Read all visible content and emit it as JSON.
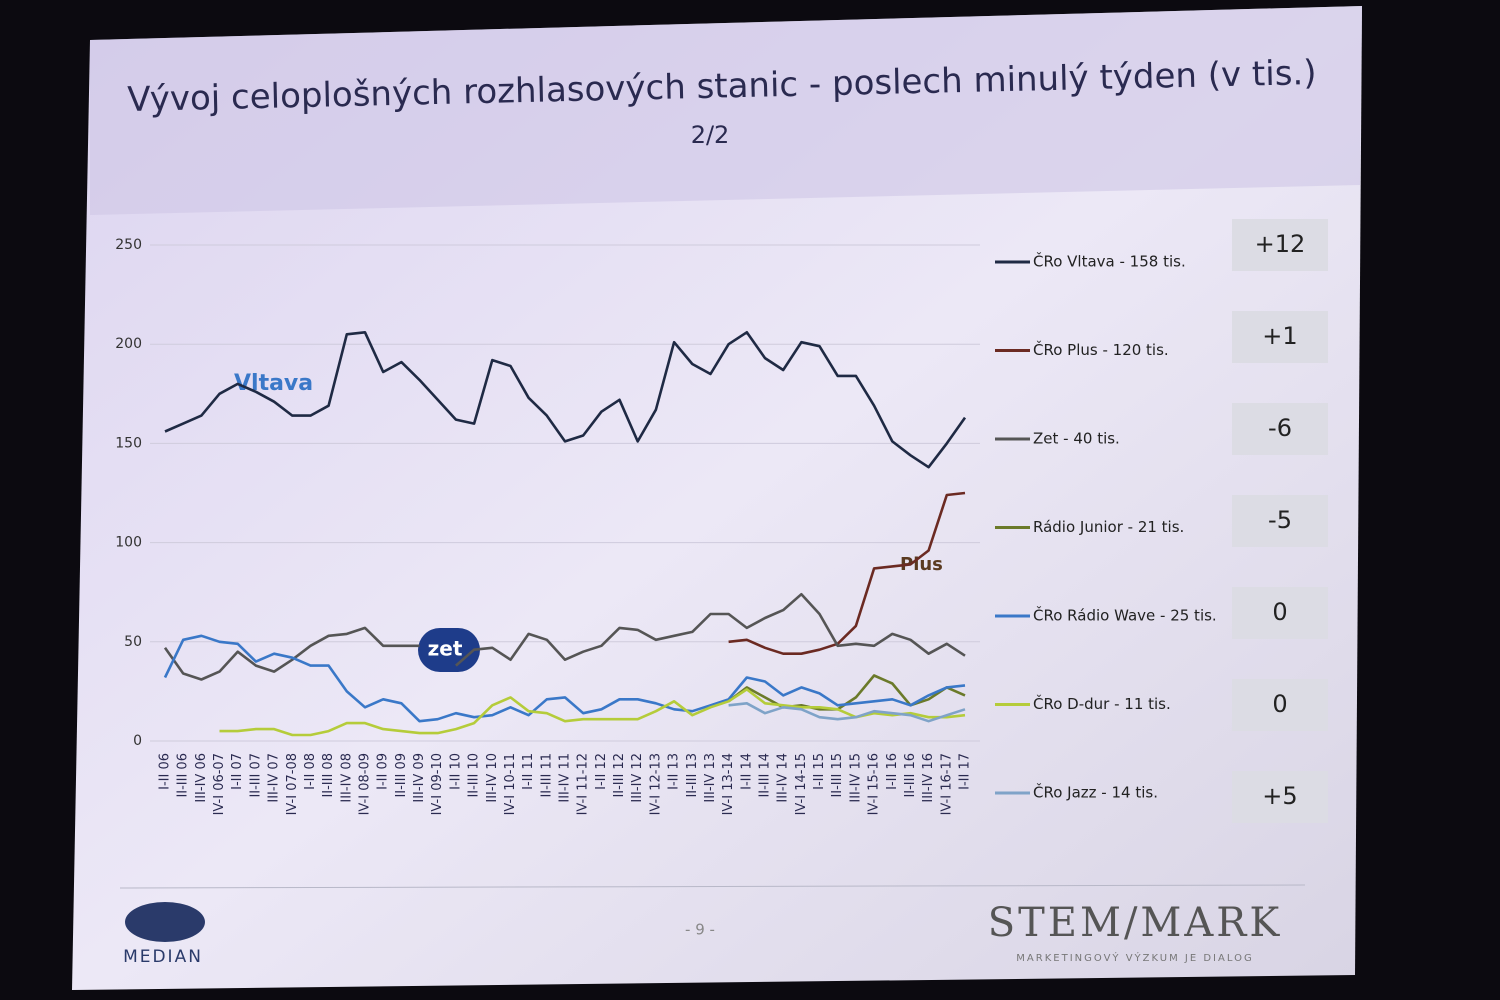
{
  "chart_data": {
    "type": "line",
    "title": "Vývoj celoplošných rozhlasových stanic - poslech minulý týden (v tis.)",
    "subtitle": "2/2",
    "categories": [
      "I-II 06",
      "II-III 06",
      "III-IV 06",
      "IV-I 06-07",
      "I-II 07",
      "II-III 07",
      "III-IV 07",
      "IV-I 07-08",
      "I-II 08",
      "II-III 08",
      "III-IV 08",
      "IV-I 08-09",
      "I-II 09",
      "II-III 09",
      "III-IV 09",
      "IV-I 09-10",
      "I-II 10",
      "II-III 10",
      "III-IV 10",
      "IV-I 10-11",
      "I-II 11",
      "II-III 11",
      "III-IV 11",
      "IV-I 11-12",
      "I-II 12",
      "II-III 12",
      "III-IV 12",
      "IV-I 12-13",
      "I-II 13",
      "II-III 13",
      "III-IV 13",
      "IV-I 13-14",
      "I-II 14",
      "II-III 14",
      "III-IV 14",
      "IV-I 14-15",
      "I-II 15",
      "II-III 15",
      "III-IV 15",
      "IV-I 15-16",
      "I-II 16",
      "II-III 16",
      "III-IV 16",
      "IV-I 16-17",
      "I-II 17"
    ],
    "series": [
      {
        "name": "ČRo Vltava - 158 tis.",
        "color": "#1f2a44",
        "values": [
          156,
          160,
          164,
          175,
          180,
          176,
          171,
          164,
          164,
          169,
          205,
          206,
          186,
          191,
          182,
          172,
          162,
          160,
          192,
          189,
          173,
          164,
          151,
          154,
          166,
          172,
          151,
          167,
          201,
          190,
          185,
          200,
          206,
          193,
          187,
          201,
          199,
          184,
          184,
          169,
          151,
          144,
          138,
          150,
          163
        ]
      },
      {
        "name": "ČRo Plus - 120 tis.",
        "color": "#6b2a22",
        "values": [
          null,
          null,
          null,
          null,
          null,
          null,
          null,
          null,
          null,
          null,
          null,
          null,
          null,
          null,
          null,
          null,
          null,
          null,
          null,
          null,
          null,
          null,
          null,
          null,
          null,
          null,
          null,
          null,
          null,
          null,
          null,
          50,
          51,
          47,
          44,
          44,
          46,
          49,
          58,
          87,
          88,
          89,
          96,
          124,
          125
        ]
      },
      {
        "name": "Zet - 40 tis.",
        "color": "#555555",
        "values": [
          47,
          34,
          31,
          35,
          45,
          38,
          35,
          41,
          48,
          53,
          54,
          57,
          48,
          48,
          48,
          null,
          38,
          46,
          47,
          41,
          54,
          51,
          41,
          45,
          48,
          57,
          56,
          51,
          53,
          55,
          64,
          64,
          57,
          62,
          66,
          74,
          64,
          48,
          49,
          48,
          54,
          51,
          44,
          49,
          43
        ]
      },
      {
        "name": "Rádio Junior - 21 tis.",
        "color": "#6b7a2a",
        "values": [
          null,
          null,
          null,
          null,
          null,
          null,
          null,
          null,
          null,
          null,
          null,
          null,
          null,
          null,
          null,
          null,
          null,
          null,
          null,
          null,
          null,
          null,
          null,
          null,
          null,
          null,
          null,
          null,
          null,
          null,
          null,
          20,
          27,
          22,
          17,
          18,
          16,
          16,
          22,
          33,
          29,
          18,
          21,
          27,
          23
        ]
      },
      {
        "name": "ČRo Rádio Wave - 25 tis.",
        "color": "#3a78c8",
        "values": [
          32,
          51,
          53,
          50,
          49,
          40,
          44,
          42,
          38,
          38,
          25,
          17,
          21,
          19,
          10,
          11,
          14,
          12,
          13,
          17,
          13,
          21,
          22,
          14,
          16,
          21,
          21,
          19,
          16,
          15,
          18,
          21,
          32,
          30,
          23,
          27,
          24,
          18,
          19,
          20,
          21,
          18,
          23,
          27,
          28
        ]
      },
      {
        "name": "ČRo D-dur - 11 tis.",
        "color": "#b5cc3a",
        "values": [
          null,
          null,
          null,
          5,
          5,
          6,
          6,
          3,
          3,
          5,
          9,
          9,
          6,
          5,
          4,
          4,
          6,
          9,
          18,
          22,
          15,
          14,
          10,
          11,
          11,
          11,
          11,
          15,
          20,
          13,
          17,
          20,
          26,
          19,
          18,
          17,
          17,
          16,
          12,
          14,
          13,
          14,
          12,
          12,
          13
        ]
      },
      {
        "name": "ČRo Jazz - 14 tis.",
        "color": "#7fa3c8",
        "values": [
          null,
          null,
          null,
          null,
          null,
          null,
          null,
          null,
          null,
          null,
          null,
          null,
          null,
          null,
          null,
          null,
          null,
          null,
          null,
          null,
          null,
          null,
          null,
          null,
          null,
          null,
          null,
          null,
          null,
          null,
          null,
          18,
          19,
          14,
          17,
          16,
          12,
          11,
          12,
          15,
          14,
          13,
          10,
          13,
          16
        ]
      }
    ],
    "changes": {
      "values": [
        12,
        1,
        -6,
        -5,
        0,
        0,
        5
      ],
      "value_labels": [
        "+12",
        "+1",
        "-6",
        "-5",
        "0",
        "0",
        "+5"
      ]
    },
    "annotations": [
      "Vltava",
      "zet",
      "Plus"
    ],
    "ylim": [
      0,
      250
    ],
    "yticks": [
      0,
      50,
      100,
      150,
      200,
      250
    ],
    "grid": true
  },
  "footer": {
    "left": "MEDIAN",
    "page": "- 9 -",
    "brand": "STEM/MARK",
    "tagline": "MARKETINGOVÝ VÝZKUM JE DIALOG"
  }
}
